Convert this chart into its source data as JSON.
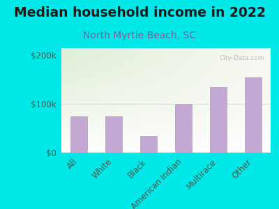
{
  "title": "Median household income in 2022",
  "subtitle": "North Myrtle Beach, SC",
  "categories": [
    "All",
    "White",
    "Black",
    "American Indian",
    "Multirace",
    "Other"
  ],
  "values": [
    75000,
    75000,
    35000,
    100000,
    135000,
    155000
  ],
  "bar_color": "#c4a8d4",
  "background_outer": "#00e8e8",
  "title_color": "#1a1a1a",
  "subtitle_color": "#7b5fa0",
  "tick_color": "#555544",
  "yticks": [
    0,
    100000,
    200000
  ],
  "ytick_labels": [
    "$0",
    "$100k",
    "$200k"
  ],
  "ylim": [
    0,
    215000
  ],
  "watermark": "City-Data.com",
  "title_fontsize": 13.5,
  "subtitle_fontsize": 10,
  "tick_fontsize": 8.5
}
